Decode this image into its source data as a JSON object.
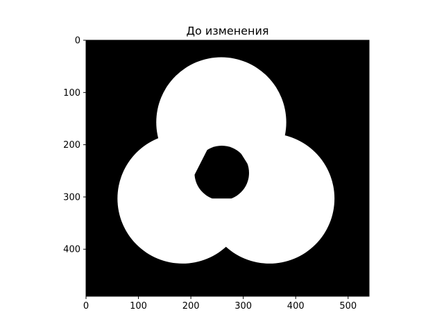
{
  "title": "До изменения",
  "image": {
    "width": 540,
    "height": 490,
    "background_color": "#000000",
    "foreground_color": "#ffffff",
    "circles": [
      {
        "name": "top",
        "cx": 258,
        "cy": 157,
        "r": 124
      },
      {
        "name": "left",
        "cx": 184,
        "cy": 303,
        "r": 124
      },
      {
        "name": "right",
        "cx": 350,
        "cy": 303,
        "r": 124
      }
    ],
    "central_hole": {
      "cx": 259,
      "cy": 254,
      "r": 52
    }
  },
  "axes": {
    "x_ticks": [
      0,
      100,
      200,
      300,
      400,
      500
    ],
    "y_ticks": [
      0,
      100,
      200,
      300,
      400
    ]
  }
}
